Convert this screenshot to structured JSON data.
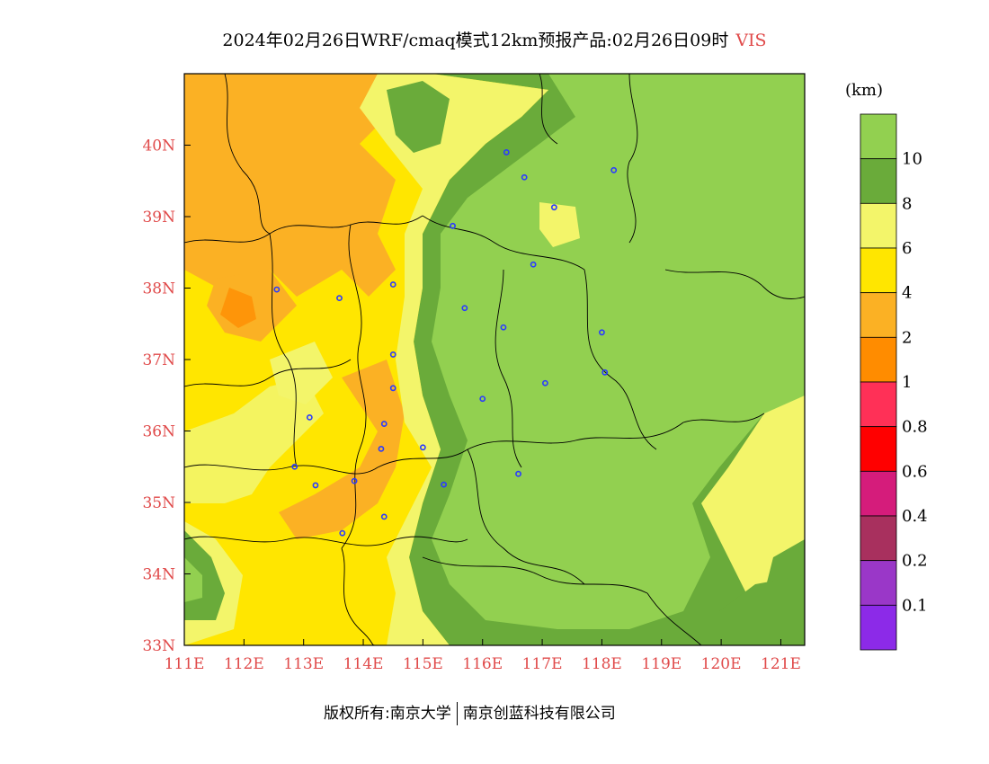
{
  "title": {
    "text": "2024年02月26日WRF/cmaq模式12km预报产品:02月26日09时",
    "variable": "VIS"
  },
  "footer": {
    "copyright": "版权所有:南京大学",
    "company": "南京创蓝科技有限公司"
  },
  "colorbar": {
    "unit": "(km)",
    "levels": [
      {
        "label": "",
        "color": "#92d050"
      },
      {
        "label": "10",
        "color": "#6aab3a"
      },
      {
        "label": "8",
        "color": "#f3f56a"
      },
      {
        "label": "6",
        "color": "#ffe600"
      },
      {
        "label": "4",
        "color": "#fbb124"
      },
      {
        "label": "2",
        "color": "#ff8c00"
      },
      {
        "label": "1",
        "color": "#ff3057"
      },
      {
        "label": "0.8",
        "color": "#ff0000"
      },
      {
        "label": "0.6",
        "color": "#d51c7b"
      },
      {
        "label": "0.4",
        "color": "#a8305e"
      },
      {
        "label": "0.2",
        "color": "#9a37c8"
      },
      {
        "label": "0.1",
        "color": "#8c2ae8"
      }
    ]
  },
  "map": {
    "lon_range": [
      111,
      121.4
    ],
    "lat_range": [
      33,
      41
    ],
    "lon_ticks": [
      "111E",
      "112E",
      "113E",
      "114E",
      "115E",
      "116E",
      "117E",
      "118E",
      "119E",
      "120E",
      "121E"
    ],
    "lat_ticks": [
      "33N",
      "34N",
      "35N",
      "36N",
      "37N",
      "38N",
      "39N",
      "40N"
    ],
    "tick_color": "#e04a4a",
    "city_marker_color": "#2a3bff",
    "cities": [
      {
        "lon": 116.4,
        "lat": 39.9
      },
      {
        "lon": 116.7,
        "lat": 39.55
      },
      {
        "lon": 117.2,
        "lat": 39.13
      },
      {
        "lon": 118.2,
        "lat": 39.65
      },
      {
        "lon": 115.5,
        "lat": 38.87
      },
      {
        "lon": 116.85,
        "lat": 38.33
      },
      {
        "lon": 112.55,
        "lat": 37.98
      },
      {
        "lon": 113.6,
        "lat": 37.86
      },
      {
        "lon": 114.5,
        "lat": 38.05
      },
      {
        "lon": 115.7,
        "lat": 37.72
      },
      {
        "lon": 116.35,
        "lat": 37.45
      },
      {
        "lon": 118.0,
        "lat": 37.38
      },
      {
        "lon": 114.5,
        "lat": 37.07
      },
      {
        "lon": 114.5,
        "lat": 36.6
      },
      {
        "lon": 116.0,
        "lat": 36.45
      },
      {
        "lon": 117.05,
        "lat": 36.67
      },
      {
        "lon": 118.05,
        "lat": 36.82
      },
      {
        "lon": 113.1,
        "lat": 36.19
      },
      {
        "lon": 114.35,
        "lat": 36.1
      },
      {
        "lon": 114.3,
        "lat": 35.75
      },
      {
        "lon": 115.0,
        "lat": 35.77
      },
      {
        "lon": 112.85,
        "lat": 35.5
      },
      {
        "lon": 113.2,
        "lat": 35.24
      },
      {
        "lon": 113.85,
        "lat": 35.3
      },
      {
        "lon": 115.35,
        "lat": 35.25
      },
      {
        "lon": 116.6,
        "lat": 35.4
      },
      {
        "lon": 114.35,
        "lat": 34.8
      },
      {
        "lon": 113.65,
        "lat": 34.57
      }
    ]
  }
}
